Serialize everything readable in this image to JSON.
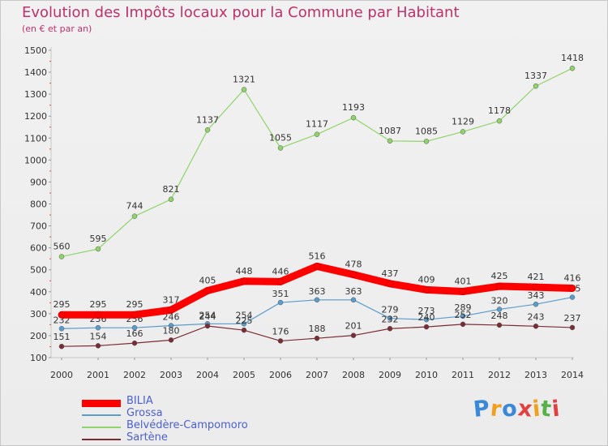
{
  "header": {
    "title": "Evolution des Impôts locaux pour la Commune par Habitant",
    "subtitle": "(en € et par an)"
  },
  "chart_data": {
    "type": "line",
    "title": "Evolution des Impôts locaux pour la Commune par Habitant",
    "subtitle": "(en € et par an)",
    "xlabel": "",
    "ylabel": "",
    "x": [
      "2000",
      "2001",
      "2002",
      "2003",
      "2004",
      "2005",
      "2006",
      "2007",
      "2008",
      "2009",
      "2010",
      "2011",
      "2012",
      "2013",
      "2014"
    ],
    "y_ticks": [
      100,
      200,
      300,
      400,
      500,
      600,
      700,
      800,
      900,
      1000,
      1100,
      1200,
      1300,
      1400,
      1500
    ],
    "ylim": [
      100,
      1500
    ],
    "grid": false,
    "legend_position": "bottom-left",
    "series": [
      {
        "name": "Belvédère-Campomoro",
        "color": "#8fd46a",
        "values": [
          560,
          595,
          744,
          821,
          1137,
          1321,
          1055,
          1117,
          1193,
          1087,
          1085,
          1129,
          1178,
          1337,
          1418
        ]
      },
      {
        "name": "Grossa",
        "color": "#5a9ccc",
        "values": [
          232,
          236,
          236,
          246,
          254,
          254,
          351,
          363,
          363,
          279,
          273,
          289,
          320,
          343,
          375
        ]
      },
      {
        "name": "Sartène",
        "color": "#7a2c34",
        "values": [
          151,
          154,
          166,
          180,
          244,
          225,
          176,
          188,
          201,
          232,
          240,
          252,
          248,
          243,
          237
        ]
      },
      {
        "name": "BILIA",
        "color": "#ff0000",
        "values": [
          295,
          295,
          295,
          317,
          405,
          448,
          446,
          516,
          478,
          437,
          409,
          401,
          425,
          421,
          416
        ]
      }
    ],
    "legend_order": [
      "BILIA",
      "Grossa",
      "Belvédère-Campomoro",
      "Sartène"
    ]
  },
  "logo": {
    "letters": [
      "P",
      "r",
      "o",
      "x",
      "i",
      "t",
      "i"
    ],
    "colors": [
      "#3a88d8",
      "#f0a020",
      "#3a88d8",
      "#e04040",
      "#f0a020",
      "#58b048",
      "#e04040"
    ]
  }
}
